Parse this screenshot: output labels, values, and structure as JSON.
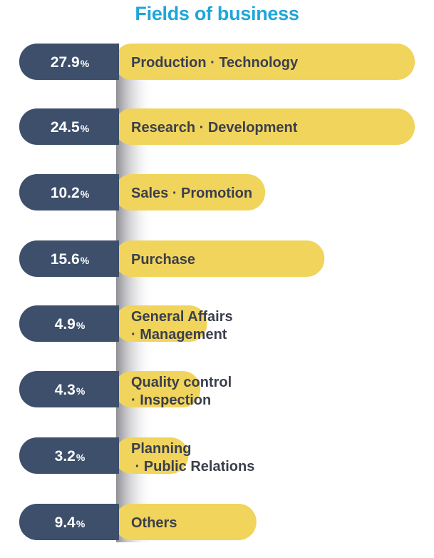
{
  "title": "Fields of business",
  "colors": {
    "title": "#1fa6d8",
    "percent_pill": "#3d4f6b",
    "bar": "#f1d45c",
    "label_text": "#3a3f4c"
  },
  "chart_data": {
    "type": "bar",
    "orientation": "horizontal",
    "unit": "%",
    "categories": [
      [
        "Production · Technology"
      ],
      [
        "Research · Development"
      ],
      [
        "Sales · Promotion"
      ],
      [
        "Purchase"
      ],
      [
        "General Affairs",
        "· Management"
      ],
      [
        "Quality control",
        "· Inspection"
      ],
      [
        "Planning",
        " · Public Relations"
      ],
      [
        "Others"
      ]
    ],
    "values": [
      27.9,
      24.5,
      10.2,
      15.6,
      4.9,
      4.3,
      3.2,
      9.4
    ],
    "value_labels": [
      "27.9",
      "24.5",
      "10.2",
      "15.6",
      "4.9",
      "4.3",
      "3.2",
      "9.4"
    ]
  }
}
